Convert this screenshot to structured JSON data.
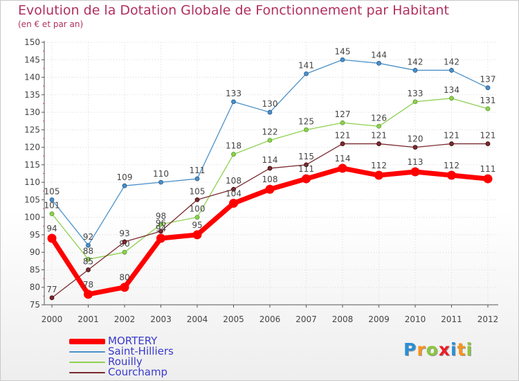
{
  "title": "Evolution de la Dotation Globale de Fonctionnement par Habitant",
  "subtitle": "(en € et par an)",
  "chart_data": {
    "type": "line",
    "title": "Evolution de la Dotation Globale de Fonctionnement par Habitant",
    "subtitle": "(en € et par an)",
    "xlabel": "",
    "ylabel": "",
    "categories": [
      "2000",
      "2001",
      "2002",
      "2003",
      "2004",
      "2005",
      "2006",
      "2007",
      "2008",
      "2009",
      "2010",
      "2011",
      "2012"
    ],
    "ylim": [
      75,
      150
    ],
    "yticks": [
      75,
      80,
      85,
      90,
      95,
      100,
      105,
      110,
      115,
      120,
      125,
      130,
      135,
      140,
      145,
      150
    ],
    "grid": true,
    "legend": "bottom-left",
    "series": [
      {
        "name": "Saint-Hilliers",
        "color": "#4a90c8",
        "values": [
          105,
          92,
          109,
          110,
          111,
          133,
          130,
          141,
          145,
          144,
          142,
          142,
          137
        ]
      },
      {
        "name": "Rouilly",
        "color": "#8ed050",
        "values": [
          101,
          88,
          90,
          98,
          100,
          118,
          122,
          125,
          127,
          126,
          133,
          134,
          131
        ]
      },
      {
        "name": "Courchamp",
        "color": "#7a2a30",
        "values": [
          77,
          85,
          93,
          96,
          105,
          108,
          114,
          115,
          121,
          121,
          120,
          121,
          121
        ]
      },
      {
        "name": "MORTERY",
        "color": "#ff0000",
        "values": [
          94,
          78,
          80,
          94,
          95,
          104,
          108,
          111,
          114,
          112,
          113,
          112,
          111
        ]
      }
    ]
  },
  "legend": {
    "items": [
      {
        "name": "MORTERY",
        "color": "#ff0000"
      },
      {
        "name": "Saint-Hilliers",
        "color": "#4a90c8"
      },
      {
        "name": "Rouilly",
        "color": "#8ed050"
      },
      {
        "name": "Courchamp",
        "color": "#7a2a30"
      }
    ]
  },
  "logo": {
    "text": "Proxiti",
    "chars": [
      {
        "ch": "P",
        "color": "#2a8fd6"
      },
      {
        "ch": "r",
        "color": "#f7941d"
      },
      {
        "ch": "o",
        "color": "#8dc63f"
      },
      {
        "ch": "x",
        "color": "#ed1c24"
      },
      {
        "ch": "i",
        "color": "#2a8fd6"
      },
      {
        "ch": "t",
        "color": "#f7941d"
      },
      {
        "ch": "i",
        "color": "#8dc63f"
      }
    ]
  }
}
